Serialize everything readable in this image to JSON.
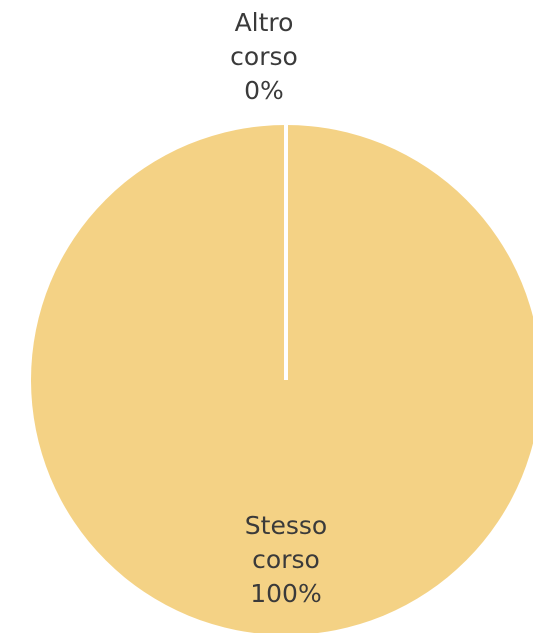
{
  "chart_data": {
    "type": "pie",
    "slices": [
      {
        "lines": [
          "Altro",
          "corso",
          "0%"
        ],
        "value": 0,
        "color": "#f4d285"
      },
      {
        "lines": [
          "Stesso",
          "corso",
          "100%"
        ],
        "value": 100,
        "color": "#f4d285"
      }
    ],
    "separator_color": "#ffffff",
    "legend": "none"
  }
}
